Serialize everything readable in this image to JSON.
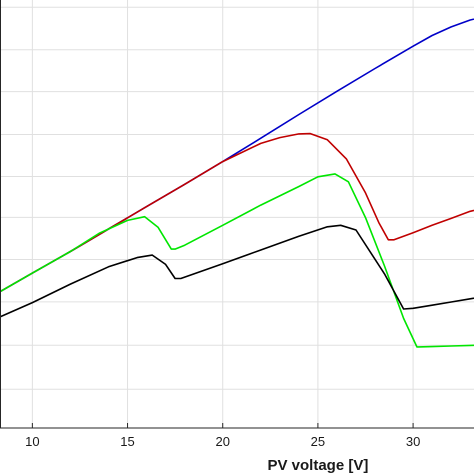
{
  "chart_data": {
    "type": "line",
    "title": "",
    "xlabel": "PV voltage [V]",
    "ylabel": "",
    "xlim": [
      8.3,
      33.2
    ],
    "ylim": [
      0,
      1
    ],
    "grid": true,
    "x_ticks": [
      "10",
      "15",
      "20",
      "25",
      "30"
    ],
    "x_tick_values": [
      10,
      15,
      20,
      25,
      30
    ],
    "y_grid_values": [
      0.0905,
      0.1932,
      0.2946,
      0.3938,
      0.492,
      0.5877,
      0.6857,
      0.7859,
      0.8837,
      0.9831
    ],
    "series": [
      {
        "color": "#0000c8",
        "x": [
          8.3,
          10,
          12,
          14,
          16,
          18,
          20,
          22,
          24,
          26,
          28,
          30,
          31,
          32,
          33,
          33.2
        ],
        "y": [
          0.3185,
          0.362,
          0.4124,
          0.465,
          0.5174,
          0.5693,
          0.6224,
          0.6772,
          0.7325,
          0.7866,
          0.84,
          0.892,
          0.917,
          0.9371,
          0.9532,
          0.9553
        ]
      },
      {
        "color": "#c00000",
        "x": [
          8.3,
          10,
          12,
          14,
          16,
          18,
          20,
          22,
          23,
          24,
          24.6,
          25.5,
          26.5,
          27.5,
          28.2,
          28.7,
          29.0,
          30,
          31,
          32,
          33,
          33.2
        ],
        "y": [
          0.3185,
          0.362,
          0.4124,
          0.465,
          0.5174,
          0.5693,
          0.6224,
          0.6649,
          0.6784,
          0.6871,
          0.6878,
          0.6733,
          0.6282,
          0.5493,
          0.48,
          0.4397,
          0.4397,
          0.4563,
          0.4737,
          0.4897,
          0.5063,
          0.5085
        ]
      },
      {
        "color": "#00e600",
        "x": [
          8.3,
          10,
          12,
          13.5,
          15,
          15.9,
          16.6,
          17.3,
          17.5,
          18,
          20,
          22,
          24,
          25,
          25.9,
          26.6,
          27.5,
          28.5,
          29.5,
          30.2,
          30.3,
          31,
          32,
          33,
          33.2
        ],
        "y": [
          0.3185,
          0.362,
          0.4124,
          0.4547,
          0.4851,
          0.4937,
          0.4692,
          0.4181,
          0.4181,
          0.427,
          0.4735,
          0.5207,
          0.5643,
          0.5868,
          0.5937,
          0.5752,
          0.4916,
          0.3786,
          0.256,
          0.1894,
          0.1894,
          0.1901,
          0.1916,
          0.1931,
          0.1932
        ]
      },
      {
        "color": "#000000",
        "x": [
          8.3,
          10,
          12,
          14,
          15.5,
          16.3,
          17,
          17.5,
          17.8,
          20,
          22,
          24,
          25.5,
          26.2,
          27,
          28.5,
          29.5,
          30,
          31,
          32,
          33,
          33.2
        ],
        "y": [
          0.2595,
          0.293,
          0.3361,
          0.3767,
          0.3981,
          0.404,
          0.3822,
          0.3493,
          0.3493,
          0.3839,
          0.4158,
          0.4478,
          0.47,
          0.4737,
          0.4627,
          0.36,
          0.278,
          0.2796,
          0.287,
          0.2944,
          0.3019,
          0.3033
        ]
      }
    ]
  }
}
